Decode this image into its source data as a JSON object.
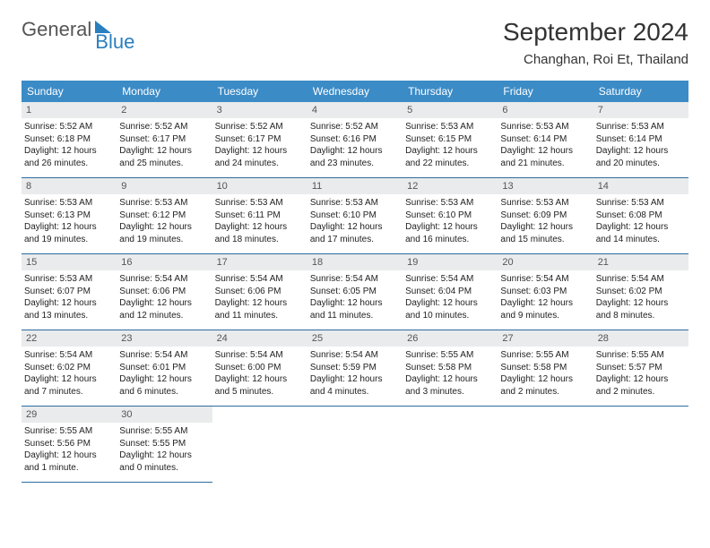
{
  "logo": {
    "part1": "General",
    "part2": "Blue"
  },
  "title": "September 2024",
  "location": "Changhan, Roi Et, Thailand",
  "colors": {
    "header_bg": "#3b8bc6",
    "header_text": "#ffffff",
    "daynum_bg": "#e9ebec",
    "border": "#2d6ca0",
    "accent": "#2a7fbf"
  },
  "day_headers": [
    "Sunday",
    "Monday",
    "Tuesday",
    "Wednesday",
    "Thursday",
    "Friday",
    "Saturday"
  ],
  "days": [
    {
      "n": "1",
      "sr": "5:52 AM",
      "ss": "6:18 PM",
      "dh": "12",
      "dm": "26 minutes"
    },
    {
      "n": "2",
      "sr": "5:52 AM",
      "ss": "6:17 PM",
      "dh": "12",
      "dm": "25 minutes"
    },
    {
      "n": "3",
      "sr": "5:52 AM",
      "ss": "6:17 PM",
      "dh": "12",
      "dm": "24 minutes"
    },
    {
      "n": "4",
      "sr": "5:52 AM",
      "ss": "6:16 PM",
      "dh": "12",
      "dm": "23 minutes"
    },
    {
      "n": "5",
      "sr": "5:53 AM",
      "ss": "6:15 PM",
      "dh": "12",
      "dm": "22 minutes"
    },
    {
      "n": "6",
      "sr": "5:53 AM",
      "ss": "6:14 PM",
      "dh": "12",
      "dm": "21 minutes"
    },
    {
      "n": "7",
      "sr": "5:53 AM",
      "ss": "6:14 PM",
      "dh": "12",
      "dm": "20 minutes"
    },
    {
      "n": "8",
      "sr": "5:53 AM",
      "ss": "6:13 PM",
      "dh": "12",
      "dm": "19 minutes"
    },
    {
      "n": "9",
      "sr": "5:53 AM",
      "ss": "6:12 PM",
      "dh": "12",
      "dm": "19 minutes"
    },
    {
      "n": "10",
      "sr": "5:53 AM",
      "ss": "6:11 PM",
      "dh": "12",
      "dm": "18 minutes"
    },
    {
      "n": "11",
      "sr": "5:53 AM",
      "ss": "6:10 PM",
      "dh": "12",
      "dm": "17 minutes"
    },
    {
      "n": "12",
      "sr": "5:53 AM",
      "ss": "6:10 PM",
      "dh": "12",
      "dm": "16 minutes"
    },
    {
      "n": "13",
      "sr": "5:53 AM",
      "ss": "6:09 PM",
      "dh": "12",
      "dm": "15 minutes"
    },
    {
      "n": "14",
      "sr": "5:53 AM",
      "ss": "6:08 PM",
      "dh": "12",
      "dm": "14 minutes"
    },
    {
      "n": "15",
      "sr": "5:53 AM",
      "ss": "6:07 PM",
      "dh": "12",
      "dm": "13 minutes"
    },
    {
      "n": "16",
      "sr": "5:54 AM",
      "ss": "6:06 PM",
      "dh": "12",
      "dm": "12 minutes"
    },
    {
      "n": "17",
      "sr": "5:54 AM",
      "ss": "6:06 PM",
      "dh": "12",
      "dm": "11 minutes"
    },
    {
      "n": "18",
      "sr": "5:54 AM",
      "ss": "6:05 PM",
      "dh": "12",
      "dm": "11 minutes"
    },
    {
      "n": "19",
      "sr": "5:54 AM",
      "ss": "6:04 PM",
      "dh": "12",
      "dm": "10 minutes"
    },
    {
      "n": "20",
      "sr": "5:54 AM",
      "ss": "6:03 PM",
      "dh": "12",
      "dm": "9 minutes"
    },
    {
      "n": "21",
      "sr": "5:54 AM",
      "ss": "6:02 PM",
      "dh": "12",
      "dm": "8 minutes"
    },
    {
      "n": "22",
      "sr": "5:54 AM",
      "ss": "6:02 PM",
      "dh": "12",
      "dm": "7 minutes"
    },
    {
      "n": "23",
      "sr": "5:54 AM",
      "ss": "6:01 PM",
      "dh": "12",
      "dm": "6 minutes"
    },
    {
      "n": "24",
      "sr": "5:54 AM",
      "ss": "6:00 PM",
      "dh": "12",
      "dm": "5 minutes"
    },
    {
      "n": "25",
      "sr": "5:54 AM",
      "ss": "5:59 PM",
      "dh": "12",
      "dm": "4 minutes"
    },
    {
      "n": "26",
      "sr": "5:55 AM",
      "ss": "5:58 PM",
      "dh": "12",
      "dm": "3 minutes"
    },
    {
      "n": "27",
      "sr": "5:55 AM",
      "ss": "5:58 PM",
      "dh": "12",
      "dm": "2 minutes"
    },
    {
      "n": "28",
      "sr": "5:55 AM",
      "ss": "5:57 PM",
      "dh": "12",
      "dm": "2 minutes"
    },
    {
      "n": "29",
      "sr": "5:55 AM",
      "ss": "5:56 PM",
      "dh": "12",
      "dm": "1 minute"
    },
    {
      "n": "30",
      "sr": "5:55 AM",
      "ss": "5:55 PM",
      "dh": "12",
      "dm": "0 minutes"
    }
  ],
  "labels": {
    "sunrise": "Sunrise:",
    "sunset": "Sunset:",
    "daylight": "Daylight:",
    "hours": "hours",
    "and": "and"
  }
}
